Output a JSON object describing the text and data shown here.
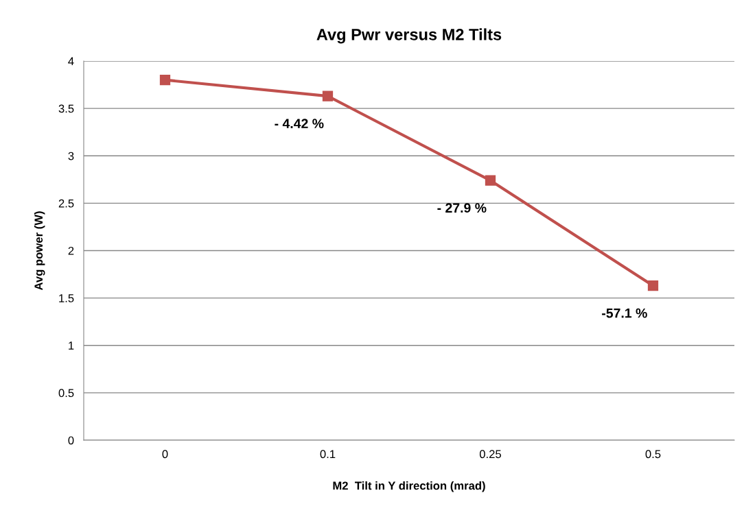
{
  "chart_data": {
    "type": "line",
    "title": "Avg Pwr versus M2 Tilts",
    "xlabel": "M2  Tilt in Y direction (mrad)",
    "ylabel": "Avg power (W)",
    "categories": [
      "0",
      "0.1",
      "0.25",
      "0.5"
    ],
    "series": [
      {
        "color": "#c0504d",
        "values": [
          3.8,
          3.63,
          2.74,
          1.63
        ]
      }
    ],
    "ylim": [
      0,
      4
    ],
    "yticks": [
      0,
      {
        "value": 0.5,
        "label": "0.5"
      },
      1,
      {
        "value": 1.5,
        "label": "1.5"
      },
      2,
      {
        "value": 2.5,
        "label": "2.5"
      },
      3,
      {
        "value": 3.5,
        "label": "3.5"
      },
      4
    ],
    "grid": "y",
    "legend": false,
    "marker": "square",
    "line_style": "solid",
    "annotations": [
      {
        "text": "- 4.42 %",
        "x": "0.1",
        "y": 3.63
      },
      {
        "text": "- 27.9 %",
        "x": "0.25",
        "y": 2.74
      },
      {
        "text": "-57.1 %",
        "x": "0.5",
        "y": 1.63
      }
    ]
  }
}
